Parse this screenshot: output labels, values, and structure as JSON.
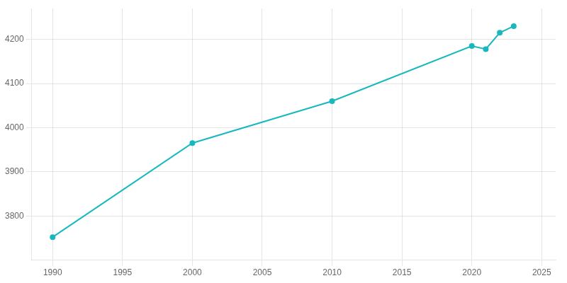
{
  "chart_data": {
    "type": "line",
    "x": [
      1990,
      2000,
      2010,
      2020,
      2021,
      2022,
      2023
    ],
    "values": [
      3752,
      3965,
      4060,
      4185,
      4178,
      4215,
      4230
    ],
    "color": "#17b8be",
    "marker": "circle",
    "xlim": [
      1988.5,
      2026
    ],
    "ylim": [
      3700,
      4270
    ],
    "xticks": [
      1990,
      1995,
      2000,
      2005,
      2010,
      2015,
      2020,
      2025
    ],
    "yticks": [
      3800,
      3900,
      4000,
      4100,
      4200
    ],
    "grid": true
  }
}
